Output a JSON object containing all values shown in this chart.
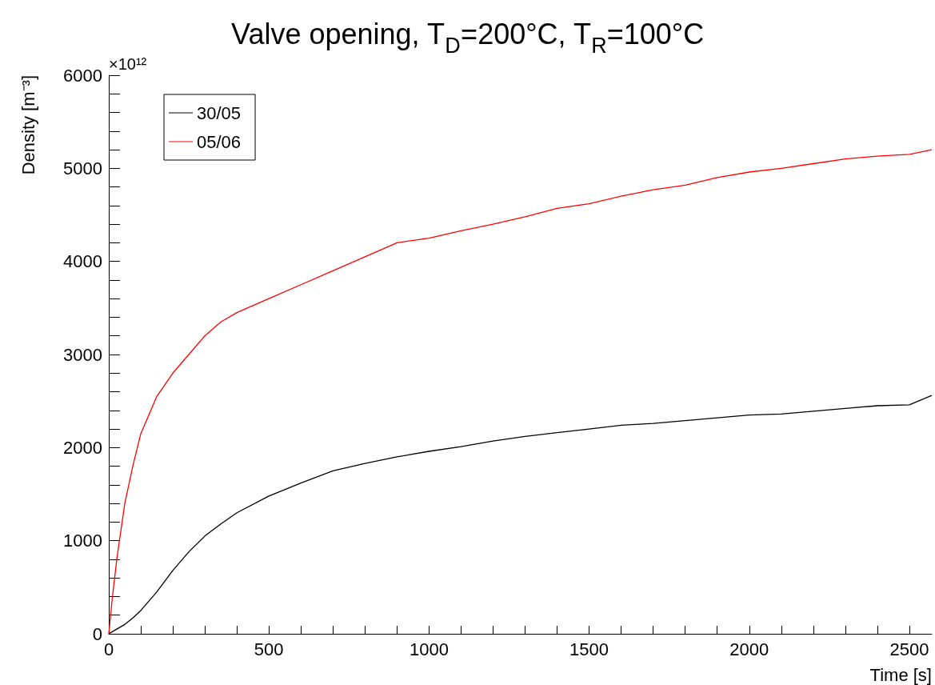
{
  "chart_data": {
    "type": "line",
    "title": "Valve opening, T$_{D}$=200°C, T$_{R}$=100°C",
    "xlabel": "Time [s]",
    "ylabel": "Density [m⁻³]",
    "annotations": [
      "×10¹²"
    ],
    "x": [
      0,
      10,
      25,
      50,
      75,
      100,
      150,
      200,
      250,
      300,
      350,
      400,
      500,
      600,
      700,
      800,
      900,
      1000,
      1100,
      1200,
      1300,
      1400,
      1500,
      1600,
      1700,
      1800,
      1900,
      2000,
      2100,
      2200,
      2300,
      2400,
      2500,
      2570
    ],
    "series": [
      {
        "name": "30/05",
        "color": "#000000",
        "values": [
          0,
          20,
          50,
          100,
          170,
          250,
          450,
          680,
          880,
          1050,
          1180,
          1300,
          1480,
          1620,
          1750,
          1830,
          1900,
          1960,
          2010,
          2070,
          2120,
          2160,
          2200,
          2240,
          2260,
          2290,
          2320,
          2350,
          2360,
          2390,
          2420,
          2450,
          2460,
          2560
        ]
      },
      {
        "name": "05/06",
        "color": "#ff0000",
        "values": [
          0,
          350,
          800,
          1400,
          1800,
          2150,
          2550,
          2800,
          3000,
          3200,
          3350,
          3450,
          3600,
          3750,
          3900,
          4050,
          4200,
          4250,
          4330,
          4400,
          4480,
          4570,
          4620,
          4700,
          4770,
          4820,
          4900,
          4960,
          5000,
          5050,
          5100,
          5130,
          5150,
          5200
        ]
      }
    ],
    "xlim": [
      0,
      2570
    ],
    "xticks": [
      0,
      {
        "value": 100,
        "label": null
      },
      {
        "value": 200,
        "label": null
      },
      {
        "value": 300,
        "label": null
      },
      {
        "value": 400,
        "label": null
      },
      500,
      {
        "value": 600,
        "label": null
      },
      {
        "value": 700,
        "label": null
      },
      {
        "value": 800,
        "label": null
      },
      {
        "value": 900,
        "label": null
      },
      1000,
      {
        "value": 1100,
        "label": null
      },
      {
        "value": 1200,
        "label": null
      },
      {
        "value": 1300,
        "label": null
      },
      {
        "value": 1400,
        "label": null
      },
      1500,
      {
        "value": 1600,
        "label": null
      },
      {
        "value": 1700,
        "label": null
      },
      {
        "value": 1800,
        "label": null
      },
      {
        "value": 1900,
        "label": null
      },
      2000,
      {
        "value": 2100,
        "label": null
      },
      {
        "value": 2200,
        "label": null
      },
      {
        "value": 2300,
        "label": null
      },
      {
        "value": 2400,
        "label": null
      },
      2500
    ],
    "ylim": [
      0,
      6000
    ],
    "yticks": [
      0,
      {
        "value": 200,
        "label": null
      },
      {
        "value": 400,
        "label": null
      },
      {
        "value": 600,
        "label": null
      },
      {
        "value": 800,
        "label": null
      },
      1000,
      {
        "value": 1200,
        "label": null
      },
      {
        "value": 1400,
        "label": null
      },
      {
        "value": 1600,
        "label": null
      },
      {
        "value": 1800,
        "label": null
      },
      2000,
      {
        "value": 2200,
        "label": null
      },
      {
        "value": 2400,
        "label": null
      },
      {
        "value": 2600,
        "label": null
      },
      {
        "value": 2800,
        "label": null
      },
      3000,
      {
        "value": 3200,
        "label": null
      },
      {
        "value": 3400,
        "label": null
      },
      {
        "value": 3600,
        "label": null
      },
      {
        "value": 3800,
        "label": null
      },
      4000,
      {
        "value": 4200,
        "label": null
      },
      {
        "value": 4400,
        "label": null
      },
      {
        "value": 4600,
        "label": null
      },
      {
        "value": 4800,
        "label": null
      },
      5000,
      {
        "value": 5200,
        "label": null
      },
      {
        "value": 5400,
        "label": null
      },
      {
        "value": 5600,
        "label": null
      },
      {
        "value": 5800,
        "label": null
      },
      6000
    ],
    "grid": false,
    "legend": "top left",
    "marker": "none",
    "line_style": "solid"
  }
}
